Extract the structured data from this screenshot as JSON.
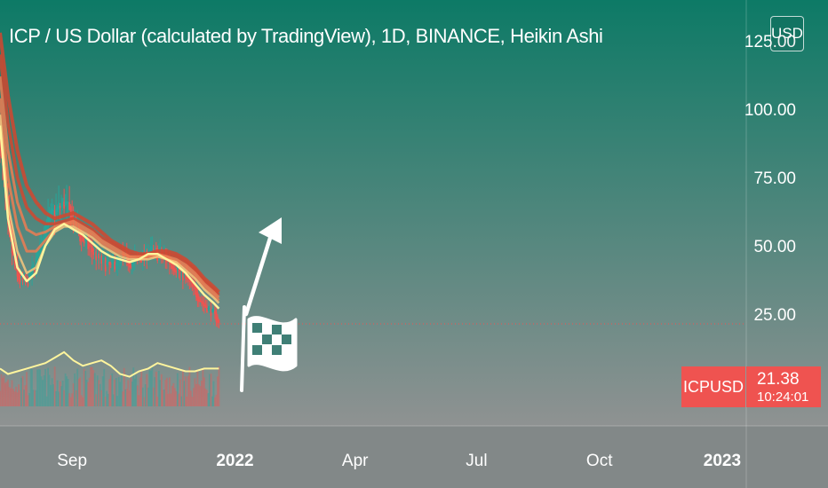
{
  "header": {
    "title": "ICP / US Dollar (calculated by TradingView), 1D, BINANCE, Heikin Ashi",
    "currency": "USD"
  },
  "price_label": {
    "symbol": "ICPUSD",
    "last_price": "21.38",
    "countdown": "10:24:01"
  },
  "colors": {
    "background_top": "#0d7a66",
    "background_bottom": "#8f9292",
    "time_axis": "#828888",
    "ribbon_outer": "#d2462f",
    "ribbon_mid": "#ec7c52",
    "ribbon_inner": "#f7c77e",
    "fast_ma": "#fff59d",
    "bear_candle": "#ef5350",
    "bull_candle": "#26a69a",
    "annotation": "#ffffff",
    "price_badge": "#ef5350"
  },
  "chart_data": {
    "type": "candlestick",
    "symbol": "ICPUSD",
    "interval": "1D",
    "exchange": "BINANCE",
    "candle_style": "Heikin Ashi",
    "currency": "USD",
    "last_price": 21.38,
    "y_ticks": [
      "125.00",
      "100.00",
      "75.00",
      "50.00",
      "25.00"
    ],
    "x_ticks": [
      "Sep",
      "2022",
      "Apr",
      "Jul",
      "Oct",
      "2023"
    ],
    "ylim": [
      -16,
      140
    ],
    "xlim": [
      "2021-07-09",
      "2023-01-19"
    ],
    "close_approx": {
      "dates": [
        "2021-07-09",
        "2021-07-15",
        "2021-07-22",
        "2021-07-29",
        "2021-08-05",
        "2021-08-12",
        "2021-08-19",
        "2021-08-26",
        "2021-09-02",
        "2021-09-09",
        "2021-09-16",
        "2021-09-23",
        "2021-09-30",
        "2021-10-07",
        "2021-10-14",
        "2021-10-21",
        "2021-10-28",
        "2021-11-04",
        "2021-11-11",
        "2021-11-18",
        "2021-11-25",
        "2021-12-02",
        "2021-12-09",
        "2021-12-16",
        "2021-12-20"
      ],
      "values": [
        88,
        55,
        38,
        36,
        44,
        58,
        62,
        66,
        58,
        52,
        48,
        44,
        42,
        46,
        44,
        45,
        48,
        47,
        45,
        42,
        38,
        33,
        28,
        25,
        21.38
      ]
    },
    "moving_averages": [
      {
        "values": [
          128,
          105,
          85,
          72,
          66,
          62,
          60,
          61,
          62,
          60,
          58,
          55,
          52,
          50,
          48,
          47,
          47,
          48,
          48,
          47,
          45,
          42,
          38,
          35,
          33
        ]
      },
      {
        "values": [
          120,
          95,
          75,
          64,
          60,
          58,
          58,
          59,
          60,
          58,
          56,
          53,
          51,
          49,
          47,
          46,
          47,
          47,
          47,
          46,
          44,
          41,
          37,
          34,
          32
        ]
      },
      {
        "values": [
          112,
          85,
          66,
          56,
          54,
          55,
          57,
          58,
          59,
          57,
          55,
          52,
          50,
          48,
          46,
          46,
          46,
          47,
          46,
          45,
          43,
          40,
          36,
          33,
          31
        ]
      },
      {
        "values": [
          104,
          75,
          57,
          48,
          48,
          52,
          56,
          58,
          58,
          56,
          54,
          51,
          49,
          47,
          46,
          45,
          46,
          46,
          46,
          44,
          42,
          39,
          35,
          32,
          30
        ]
      },
      {
        "values": [
          98,
          65,
          48,
          40,
          42,
          50,
          55,
          57,
          57,
          55,
          53,
          50,
          48,
          46,
          45,
          45,
          45,
          46,
          45,
          44,
          41,
          38,
          34,
          31,
          29
        ]
      },
      {
        "values": [
          94,
          60,
          42,
          37,
          40,
          50,
          56,
          58,
          56,
          54,
          51,
          48,
          46,
          45,
          44,
          45,
          47,
          47,
          45,
          43,
          40,
          36,
          32,
          29,
          27
        ]
      }
    ],
    "volume_overlay": {
      "values": [
        5,
        3,
        4,
        5,
        6,
        7,
        9,
        11,
        8,
        6,
        7,
        8,
        6,
        3,
        2,
        4,
        5,
        7,
        6,
        5,
        4,
        4,
        5,
        5,
        5
      ]
    },
    "annotations": [
      "up-arrow",
      "checkered-flag"
    ],
    "grid": false,
    "legend": "none"
  }
}
